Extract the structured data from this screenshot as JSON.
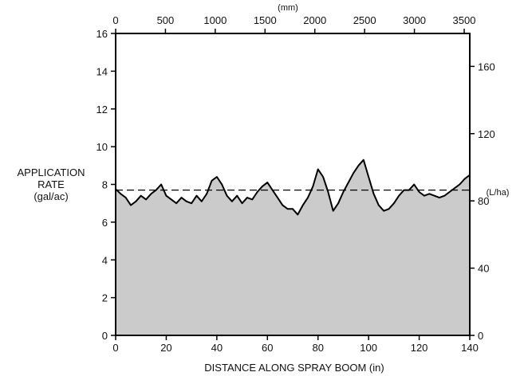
{
  "chart_data": {
    "type": "area",
    "title": "",
    "xlabel": "DISTANCE ALONG SPRAY BOOM (in)",
    "ylabel": [
      "APPLICATION",
      "RATE",
      "(gal/ac)"
    ],
    "xlim": [
      0,
      140
    ],
    "ylim": [
      0,
      16
    ],
    "x_ticks": [
      0,
      20,
      40,
      60,
      80,
      100,
      120,
      140
    ],
    "y_ticks": [
      0,
      2,
      4,
      6,
      8,
      10,
      12,
      14,
      16
    ],
    "secondary_x": {
      "label": "(mm)",
      "lim": [
        0,
        3556
      ],
      "ticks": [
        0,
        500,
        1000,
        1500,
        2000,
        2500,
        3000,
        3500
      ]
    },
    "secondary_y": {
      "label": "(L/ha)",
      "lim": [
        0,
        179.6
      ],
      "ticks": [
        0,
        40,
        80,
        120,
        160
      ]
    },
    "reference_line": {
      "y": 7.7,
      "style": "dashed"
    },
    "grid": false,
    "fill_color": "#cbcbcb",
    "line_color": "#000000",
    "series": [
      {
        "x": [
          0,
          2,
          4,
          6,
          8,
          10,
          12,
          14,
          16,
          18,
          20,
          22,
          24,
          26,
          28,
          30,
          32,
          34,
          36,
          38,
          40,
          42,
          44,
          46,
          48,
          50,
          52,
          54,
          56,
          58,
          60,
          62,
          64,
          66,
          68,
          70,
          72,
          74,
          76,
          78,
          80,
          82,
          84,
          86,
          88,
          90,
          92,
          94,
          96,
          98,
          100,
          102,
          104,
          106,
          108,
          110,
          112,
          114,
          116,
          118,
          120,
          122,
          124,
          126,
          128,
          130,
          132,
          134,
          136,
          138,
          140
        ],
        "values": [
          7.75,
          7.5,
          7.3,
          6.9,
          7.1,
          7.4,
          7.2,
          7.5,
          7.7,
          8.0,
          7.4,
          7.2,
          7.0,
          7.3,
          7.1,
          7.0,
          7.4,
          7.1,
          7.5,
          8.2,
          8.4,
          8.0,
          7.4,
          7.1,
          7.4,
          7.0,
          7.3,
          7.2,
          7.6,
          7.9,
          8.1,
          7.7,
          7.3,
          6.9,
          6.7,
          6.7,
          6.4,
          6.9,
          7.3,
          7.9,
          8.8,
          8.4,
          7.6,
          6.6,
          7.0,
          7.6,
          8.1,
          8.6,
          9.0,
          9.3,
          8.4,
          7.5,
          6.9,
          6.6,
          6.7,
          7.0,
          7.4,
          7.7,
          7.7,
          8.0,
          7.6,
          7.4,
          7.5,
          7.4,
          7.3,
          7.4,
          7.6,
          7.8,
          8.0,
          8.3,
          8.5
        ]
      }
    ]
  }
}
